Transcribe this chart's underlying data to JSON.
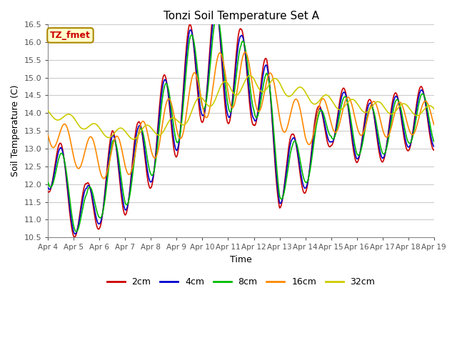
{
  "title": "Tonzi Soil Temperature Set A",
  "xlabel": "Time",
  "ylabel": "Soil Temperature (C)",
  "ylim": [
    10.5,
    16.5
  ],
  "xlim": [
    0,
    360
  ],
  "plot_bg": "#ffffff",
  "fig_bg": "#ffffff",
  "grid_color": "#cccccc",
  "annotation_text": "TZ_fmet",
  "annotation_bg": "#ffffcc",
  "annotation_border": "#aa8800",
  "x_tick_labels": [
    "Apr 4",
    "Apr 5",
    "Apr 6",
    "Apr 7",
    "Apr 8",
    "Apr 9",
    "Apr 10",
    "Apr 11",
    "Apr 12",
    "Apr 13",
    "Apr 14",
    "Apr 15",
    "Apr 16",
    "Apr 17",
    "Apr 18",
    "Apr 19"
  ],
  "x_tick_positions": [
    0,
    24,
    48,
    72,
    96,
    120,
    144,
    168,
    192,
    216,
    240,
    264,
    288,
    312,
    336,
    360
  ],
  "y_ticks": [
    10.5,
    11.0,
    11.5,
    12.0,
    12.5,
    13.0,
    13.5,
    14.0,
    14.5,
    15.0,
    15.5,
    16.0,
    16.5
  ],
  "colors": {
    "2cm": "#cc0000",
    "4cm": "#0000cc",
    "8cm": "#00bb00",
    "16cm": "#ff8800",
    "32cm": "#cccc00"
  },
  "line_width": 1.2,
  "legend_entries": [
    "2cm",
    "4cm",
    "8cm",
    "16cm",
    "32cm"
  ]
}
